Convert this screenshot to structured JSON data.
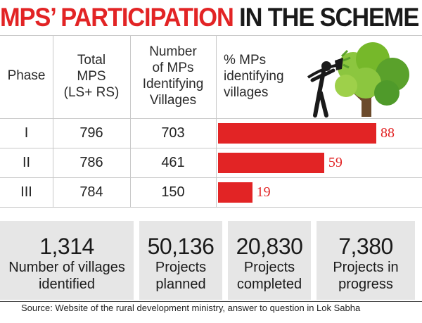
{
  "title": {
    "part1": "MPS’ PARTICIPATION",
    "part2": "IN THE SCHEME"
  },
  "headers": {
    "phase": "Phase",
    "total_mps": [
      "Total",
      "MPS",
      "(LS+ RS)"
    ],
    "identifying": [
      "Number",
      "of MPs",
      "Identifying",
      "Villages"
    ],
    "pct": [
      "% MPs",
      "identifying",
      "villages"
    ]
  },
  "rows": [
    {
      "phase": "I",
      "total": "796",
      "identifying": "703",
      "pct": "88"
    },
    {
      "phase": "II",
      "total": "786",
      "identifying": "461",
      "pct": "59"
    },
    {
      "phase": "III",
      "total": "784",
      "identifying": "150",
      "pct": "19"
    }
  ],
  "chart_data": {
    "type": "bar",
    "categories": [
      "I",
      "II",
      "III"
    ],
    "series": [
      {
        "name": "% MPs identifying villages",
        "values": [
          88,
          59,
          19
        ]
      }
    ]
  },
  "stats": [
    {
      "value": "1,314",
      "label": [
        "Number of villages",
        "identified"
      ]
    },
    {
      "value": "50,136",
      "label": [
        "Projects",
        "planned"
      ]
    },
    {
      "value": "20,830",
      "label": [
        "Projects",
        "completed"
      ]
    },
    {
      "value": "7,380",
      "label": [
        "Projects in",
        "progress"
      ]
    }
  ],
  "source": "Source: Website of the rural development ministry, answer to question in Lok Sabha",
  "colors": {
    "accent": "#e22425",
    "panel": "#e6e6e6"
  }
}
